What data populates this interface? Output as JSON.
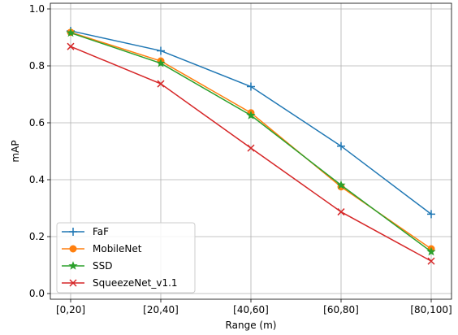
{
  "chart_data": {
    "type": "line",
    "title": "",
    "xlabel": "Range (m)",
    "ylabel": "mAP",
    "categories": [
      "[0,20]",
      "[20,40]",
      "[40,60]",
      "[60,80]",
      "[80,100]"
    ],
    "ylim": [
      0,
      1.0
    ],
    "yticks": [
      "0.0",
      "0.2",
      "0.4",
      "0.6",
      "0.8",
      "1.0"
    ],
    "grid": true,
    "legend_position": "lower-left",
    "series": [
      {
        "name": "FaF",
        "color": "#1f77b4",
        "marker": "plus",
        "values": [
          0.923,
          0.853,
          0.727,
          0.518,
          0.279
        ]
      },
      {
        "name": "MobileNet",
        "color": "#ff7f0e",
        "marker": "circle",
        "values": [
          0.918,
          0.817,
          0.635,
          0.375,
          0.157
        ]
      },
      {
        "name": "SSD",
        "color": "#2ca02c",
        "marker": "star",
        "values": [
          0.916,
          0.809,
          0.626,
          0.381,
          0.147
        ]
      },
      {
        "name": "SqueezeNet_v1.1",
        "color": "#d62728",
        "marker": "x",
        "values": [
          0.868,
          0.737,
          0.511,
          0.287,
          0.114
        ]
      }
    ]
  }
}
